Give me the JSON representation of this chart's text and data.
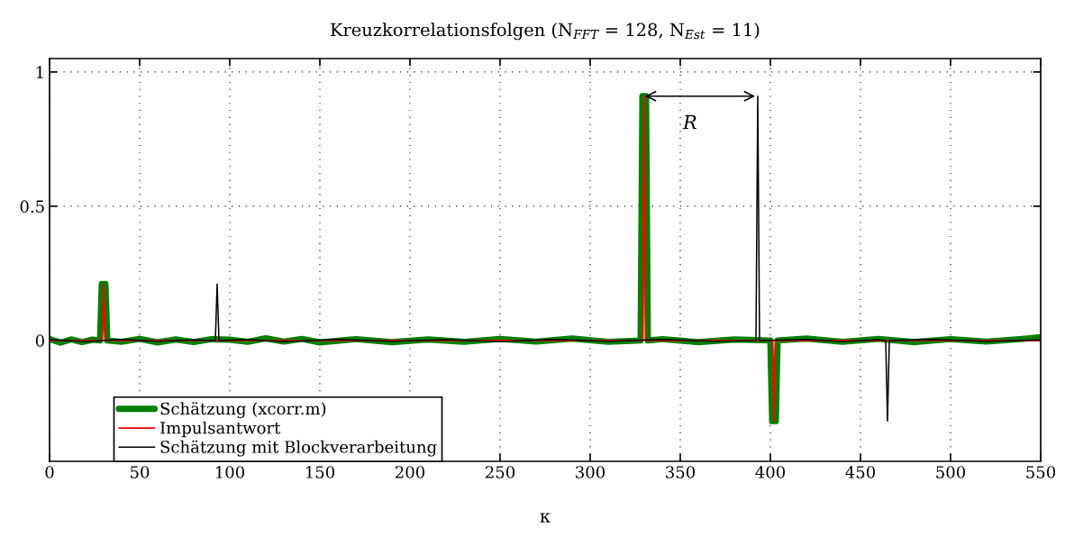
{
  "chart_data": {
    "type": "line",
    "title": "Kreuzkorrelationsfolgen (N$_{FFT}$ = 128, N$_{Est}$ = 11)",
    "xlabel": "κ",
    "xlim": [
      0,
      550
    ],
    "xticks": [
      0,
      50,
      100,
      150,
      200,
      250,
      300,
      350,
      400,
      450,
      500,
      550
    ],
    "ylim": [
      -0.45,
      1.05
    ],
    "yticks": [
      0,
      0.5,
      1
    ],
    "grid": true,
    "legend": "bottom left",
    "line_style": "solid",
    "annotations": [
      "R"
    ],
    "series": [
      {
        "name": "Schätzung (xcorr.m)",
        "color": "#008000",
        "x": [
          0,
          6,
          12,
          18,
          24,
          28,
          29,
          30,
          31,
          32,
          40,
          50,
          60,
          70,
          80,
          90,
          100,
          110,
          120,
          130,
          140,
          150,
          170,
          190,
          210,
          230,
          250,
          270,
          290,
          310,
          328,
          329,
          330,
          331,
          332,
          340,
          360,
          380,
          400,
          401,
          402,
          403,
          404,
          420,
          440,
          460,
          480,
          500,
          520,
          540,
          550
        ],
        "values": [
          0.005,
          -0.008,
          0.004,
          -0.006,
          0.003,
          0,
          0.21,
          0.21,
          0.21,
          0,
          -0.005,
          0.006,
          -0.007,
          0.004,
          -0.006,
          0.005,
          0.003,
          -0.005,
          0.008,
          -0.004,
          0.006,
          -0.007,
          0.005,
          -0.006,
          0.004,
          -0.005,
          0.006,
          -0.004,
          0.007,
          -0.005,
          0,
          0.91,
          0.91,
          0.91,
          0,
          0.005,
          -0.006,
          0.004,
          0,
          -0.3,
          -0.3,
          -0.3,
          0,
          0.007,
          -0.005,
          0.006,
          -0.006,
          0.005,
          -0.004,
          0.006,
          0.012
        ]
      },
      {
        "name": "Impulsantwort",
        "color": "#ff0000",
        "x": [
          0,
          29,
          30,
          31,
          329,
          330,
          331,
          401,
          402,
          403,
          550
        ],
        "values": [
          0,
          0,
          0.21,
          0,
          0,
          0.91,
          0,
          0,
          -0.3,
          0,
          0
        ]
      },
      {
        "name": "Schätzung mit Blockverarbeitung",
        "color": "#000000",
        "x": [
          0,
          20,
          40,
          60,
          80,
          92,
          93,
          94,
          110,
          130,
          160,
          190,
          220,
          250,
          280,
          310,
          340,
          370,
          392,
          393,
          394,
          420,
          440,
          460,
          464,
          465,
          466,
          490,
          520,
          550
        ],
        "values": [
          0.003,
          -0.004,
          0.004,
          -0.003,
          0.002,
          0,
          0.21,
          0,
          0.003,
          -0.004,
          0.004,
          -0.003,
          0.003,
          -0.004,
          0.004,
          -0.003,
          0.004,
          -0.003,
          0,
          0.91,
          0,
          0.004,
          -0.004,
          0.003,
          0,
          -0.3,
          0,
          0.004,
          -0.003,
          0.002
        ]
      }
    ]
  }
}
